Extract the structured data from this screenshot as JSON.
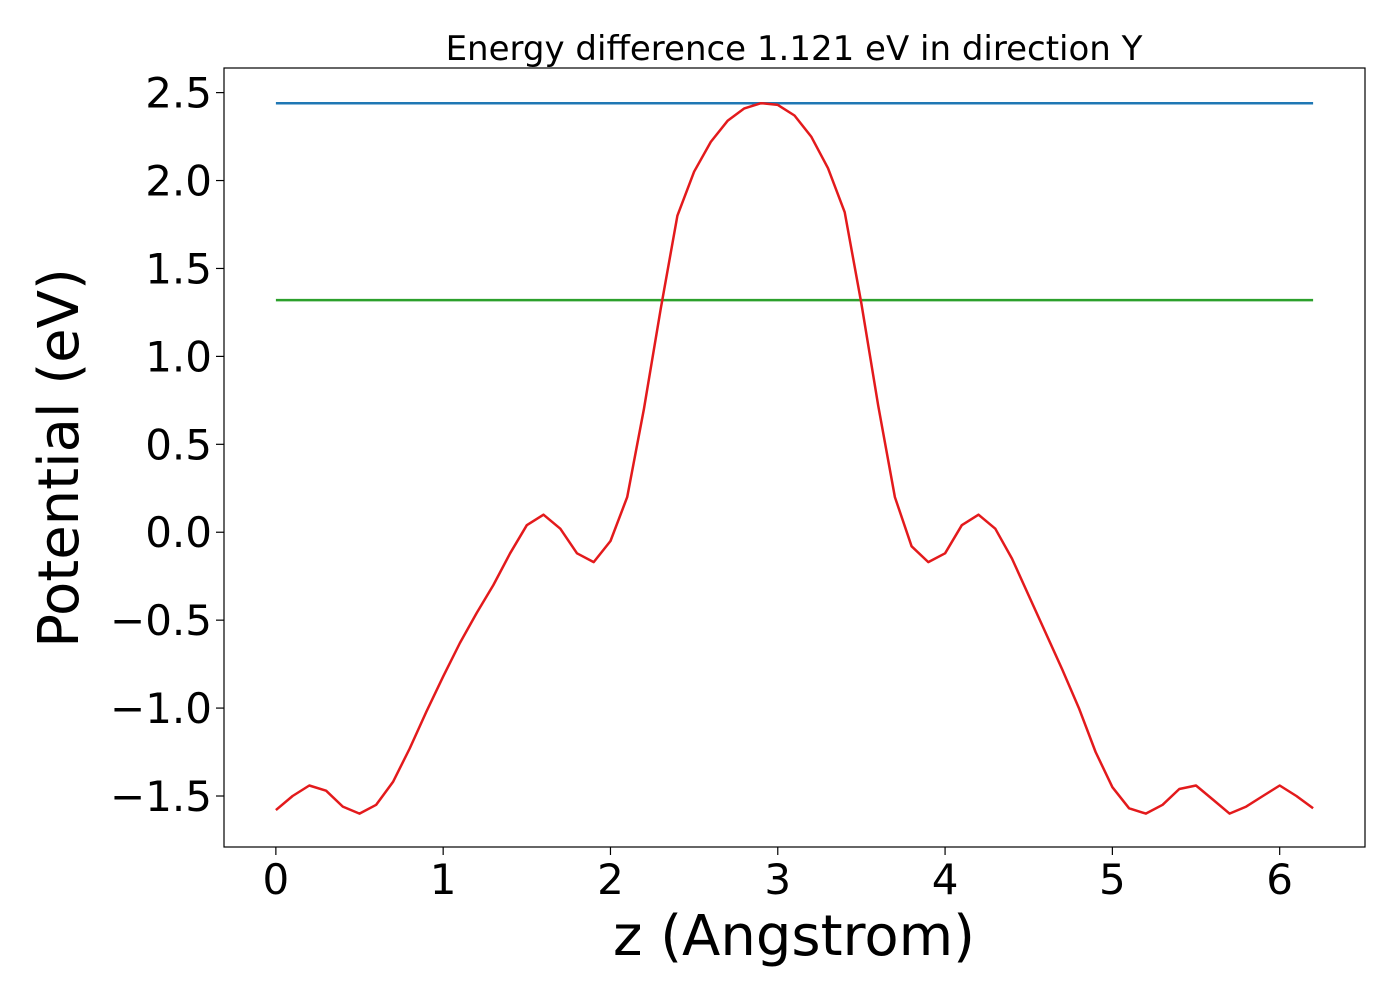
{
  "chart_data": {
    "type": "line",
    "title": "Energy difference 1.121 eV in direction Y",
    "xlabel": "z (Angstrom)",
    "ylabel": "Potential (eV)",
    "xlim": [
      -0.31,
      6.51
    ],
    "ylim": [
      -1.79,
      2.64
    ],
    "xticks": [
      0,
      1,
      2,
      3,
      4,
      5,
      6
    ],
    "xtick_labels": [
      "0",
      "1",
      "2",
      "3",
      "4",
      "5",
      "6"
    ],
    "yticks": [
      -1.5,
      -1.0,
      -0.5,
      0.0,
      0.5,
      1.0,
      1.5,
      2.0,
      2.5
    ],
    "ytick_labels": [
      "−1.5",
      "−1.0",
      "−0.5",
      "0.0",
      "0.5",
      "1.0",
      "1.5",
      "2.0",
      "2.5"
    ],
    "grid": false,
    "series": [
      {
        "color": "#1f77b4",
        "x": [
          0,
          6.2
        ],
        "y": [
          2.44,
          2.44
        ]
      },
      {
        "color": "#2ca02c",
        "x": [
          0,
          6.2
        ],
        "y": [
          1.32,
          1.32
        ]
      },
      {
        "color": "#e31a1c",
        "x": [
          0,
          0.1,
          0.2,
          0.3,
          0.4,
          0.5,
          0.6,
          0.7,
          0.8,
          0.9,
          1.0,
          1.1,
          1.2,
          1.3,
          1.4,
          1.5,
          1.6,
          1.7,
          1.8,
          1.9,
          2.0,
          2.1,
          2.2,
          2.3,
          2.4,
          2.5,
          2.6,
          2.7,
          2.8,
          2.9,
          3.0,
          3.1,
          3.2,
          3.3,
          3.4,
          3.5,
          3.6,
          3.7,
          3.8,
          3.9,
          4.0,
          4.1,
          4.2,
          4.3,
          4.4,
          4.5,
          4.6,
          4.7,
          4.8,
          4.9,
          5.0,
          5.1,
          5.2,
          5.3,
          5.4,
          5.5,
          5.6,
          5.7,
          5.8,
          5.9,
          6.0,
          6.1,
          6.2
        ],
        "y": [
          -1.58,
          -1.5,
          -1.44,
          -1.47,
          -1.56,
          -1.6,
          -1.55,
          -1.42,
          -1.23,
          -1.02,
          -0.82,
          -0.63,
          -0.46,
          -0.3,
          -0.12,
          0.04,
          0.1,
          0.02,
          -0.12,
          -0.17,
          -0.05,
          0.2,
          0.7,
          1.27,
          1.8,
          2.05,
          2.22,
          2.34,
          2.41,
          2.44,
          2.43,
          2.37,
          2.25,
          2.07,
          1.82,
          1.3,
          0.72,
          0.2,
          -0.08,
          -0.17,
          -0.12,
          0.04,
          0.1,
          0.02,
          -0.15,
          -0.36,
          -0.57,
          -0.78,
          -1.0,
          -1.25,
          -1.45,
          -1.57,
          -1.6,
          -1.55,
          -1.46,
          -1.44,
          -1.52,
          -1.6,
          -1.56,
          -1.5,
          -1.44,
          -1.5,
          -1.57
        ]
      }
    ]
  }
}
